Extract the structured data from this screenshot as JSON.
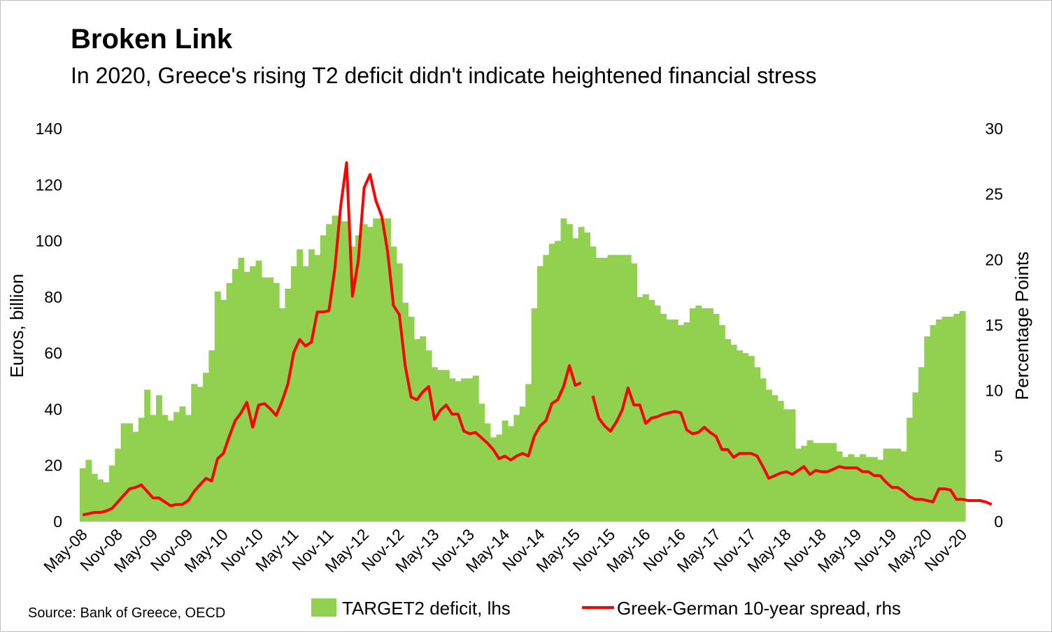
{
  "title": "Broken Link",
  "subtitle": "In 2020, Greece's rising T2 deficit didn't indicate heightened financial stress",
  "source": "Source: Bank of Greece, OECD",
  "colors": {
    "bars": "#92d050",
    "line": "#ff0000"
  },
  "chart_data": {
    "type": "bar",
    "start_month": "May-08",
    "xlabels": [
      "May-08",
      "Nov-08",
      "May-09",
      "Nov-09",
      "May-10",
      "Nov-10",
      "May-11",
      "Nov-11",
      "May-12",
      "Nov-12",
      "May-13",
      "Nov-13",
      "May-14",
      "Nov-14",
      "May-15",
      "Nov-15",
      "May-16",
      "Nov-16",
      "May-17",
      "Nov-17",
      "May-18",
      "Nov-18",
      "May-19",
      "Nov-19",
      "May-20",
      "Nov-20"
    ],
    "ylabel_left": "Euros, billion",
    "ylabel_right": "Percentage Points",
    "ylim_left": [
      0,
      140
    ],
    "ylim_right": [
      0,
      30
    ],
    "yticks_left": [
      "0",
      "20",
      "40",
      "60",
      "80",
      "100",
      "120",
      "140"
    ],
    "yticks_right": [
      "0",
      "5",
      "10",
      "15",
      "20",
      "25",
      "30"
    ],
    "legend": {
      "position": "bottom"
    },
    "series": [
      {
        "name": "TARGET2 deficit, lhs",
        "type": "bar",
        "axis": "left",
        "values": [
          19,
          22,
          17,
          15,
          14,
          20,
          26,
          35,
          35,
          32,
          37,
          47,
          38,
          45,
          38,
          36,
          39,
          41,
          38,
          49,
          48,
          53,
          61,
          82,
          79,
          85,
          90,
          94,
          89,
          91,
          93,
          87,
          87,
          85,
          76,
          83,
          91,
          97,
          91,
          97,
          95,
          102,
          106,
          109,
          107,
          107,
          98,
          102,
          106,
          105,
          108,
          108,
          108,
          98,
          92,
          78,
          73,
          65,
          66,
          61,
          55,
          54,
          54,
          51,
          50,
          51,
          51,
          52,
          42,
          35,
          30,
          31,
          36,
          34,
          38,
          41,
          49,
          76,
          91,
          95,
          99,
          100,
          108,
          106,
          101,
          105,
          103,
          98,
          94,
          94,
          95,
          95,
          95,
          95,
          92,
          80,
          81,
          79,
          77,
          74,
          72,
          72,
          70,
          71,
          76,
          77,
          76,
          76,
          74,
          70,
          65,
          63,
          61,
          60,
          59,
          55,
          51,
          47,
          45,
          43,
          40,
          40,
          26,
          27,
          29,
          28,
          28,
          28,
          28,
          25,
          23,
          24,
          23,
          24,
          23,
          23,
          22,
          26,
          26,
          26,
          25,
          37,
          46,
          55,
          66,
          70,
          72,
          73,
          73,
          74,
          75
        ]
      },
      {
        "name": "Greek-German 10-year spread, rhs",
        "type": "line",
        "axis": "right",
        "values": [
          0.5,
          0.6,
          0.7,
          0.7,
          0.8,
          1.0,
          1.5,
          2.0,
          2.5,
          2.6,
          2.8,
          2.3,
          1.8,
          1.8,
          1.5,
          1.2,
          1.3,
          1.3,
          1.6,
          2.3,
          2.8,
          3.3,
          3.1,
          4.8,
          5.2,
          6.5,
          7.7,
          8.3,
          9.1,
          7.2,
          8.9,
          9.0,
          8.6,
          8.1,
          9.2,
          10.5,
          12.9,
          13.9,
          13.4,
          13.7,
          16.0,
          16.0,
          16.1,
          19.3,
          24.1,
          27.4,
          17.2,
          19.9,
          25.5,
          26.5,
          24.5,
          23.3,
          20.6,
          16.5,
          15.8,
          11.9,
          9.5,
          9.3,
          9.9,
          10.3,
          7.8,
          8.5,
          8.9,
          8.2,
          8.2,
          6.9,
          6.7,
          6.8,
          6.4,
          6.0,
          5.5,
          4.8,
          5.0,
          4.7,
          5.0,
          5.2,
          5.0,
          6.5,
          7.3,
          7.7,
          9.0,
          9.3,
          10.3,
          11.9,
          10.4,
          10.6,
          null,
          9.6,
          7.9,
          7.3,
          6.9,
          7.6,
          8.5,
          10.2,
          8.9,
          8.9,
          7.5,
          7.9,
          8.0,
          8.2,
          8.3,
          8.4,
          8.3,
          7.0,
          6.7,
          6.8,
          7.2,
          6.8,
          6.5,
          5.5,
          5.5,
          4.9,
          5.2,
          5.2,
          5.2,
          5.0,
          4.2,
          3.3,
          3.5,
          3.7,
          3.8,
          3.6,
          3.9,
          4.2,
          3.6,
          3.9,
          3.8,
          3.8,
          4.0,
          4.2,
          4.1,
          4.1,
          4.1,
          3.8,
          3.8,
          3.5,
          3.5,
          3.0,
          2.6,
          2.6,
          2.3,
          1.9,
          1.7,
          1.7,
          1.6,
          1.5,
          2.5,
          2.5,
          2.4,
          1.7,
          1.7,
          1.6,
          1.6,
          1.6,
          1.5,
          1.3
        ]
      }
    ]
  }
}
